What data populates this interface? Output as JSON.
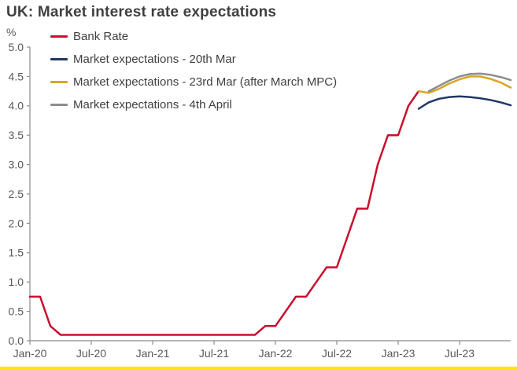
{
  "title": "UK: Market interest rate expectations",
  "accent": {
    "bottom_rule_color": "#ffe600"
  },
  "axis": {
    "line_color": "#8c8c8c",
    "tick_label_color": "#595959"
  },
  "chart_data": {
    "type": "line",
    "title": "UK: Market interest rate expectations",
    "xlabel": "",
    "ylabel": "%",
    "ylim": [
      0,
      5
    ],
    "ytick_step": 0.5,
    "ytick_labels": [
      "0.0",
      "0.5",
      "1.0",
      "1.5",
      "2.0",
      "2.5",
      "3.0",
      "3.5",
      "4.0",
      "4.5",
      "5.0"
    ],
    "x_unit": "months since Jan-2020",
    "xlim": [
      0,
      47
    ],
    "xticks": {
      "positions": [
        0,
        6,
        12,
        18,
        24,
        30,
        36,
        42
      ],
      "labels": [
        "Jan-20",
        "Jul-20",
        "Jan-21",
        "Jul-21",
        "Jan-22",
        "Jul-22",
        "Jan-23",
        "Jul-23"
      ]
    },
    "grid": false,
    "legend_position": "top-left",
    "series": [
      {
        "name": "Bank Rate",
        "color": "#c8102e",
        "x": [
          0,
          1,
          2,
          3,
          22,
          23,
          24,
          25,
          26,
          27,
          28,
          29,
          30,
          31,
          32,
          33,
          34,
          35,
          36,
          37,
          38
        ],
        "y": [
          0.75,
          0.75,
          0.25,
          0.1,
          0.1,
          0.25,
          0.25,
          0.5,
          0.75,
          0.75,
          1.0,
          1.25,
          1.25,
          1.75,
          2.25,
          2.25,
          3.0,
          3.5,
          3.5,
          4.0,
          4.25
        ]
      },
      {
        "name": "Market expectations - 20th Mar",
        "color": "#1f3864",
        "x": [
          38,
          39,
          40,
          41,
          42,
          43,
          44,
          45,
          46,
          47
        ],
        "y": [
          3.95,
          4.06,
          4.12,
          4.15,
          4.16,
          4.15,
          4.13,
          4.1,
          4.06,
          4.01
        ]
      },
      {
        "name": "Market expectations - 23rd Mar (after March MPC)",
        "color": "#d9a521",
        "x": [
          38,
          39,
          40,
          41,
          42,
          43,
          44,
          45,
          46,
          47
        ],
        "y": [
          4.25,
          4.22,
          4.29,
          4.38,
          4.45,
          4.5,
          4.5,
          4.46,
          4.4,
          4.31
        ]
      },
      {
        "name": "Market expectations - 4th April",
        "color": "#8a8d8f",
        "x": [
          39,
          40,
          41,
          42,
          43,
          44,
          45,
          46,
          47
        ],
        "y": [
          4.25,
          4.34,
          4.43,
          4.5,
          4.54,
          4.55,
          4.53,
          4.49,
          4.44
        ]
      }
    ]
  }
}
